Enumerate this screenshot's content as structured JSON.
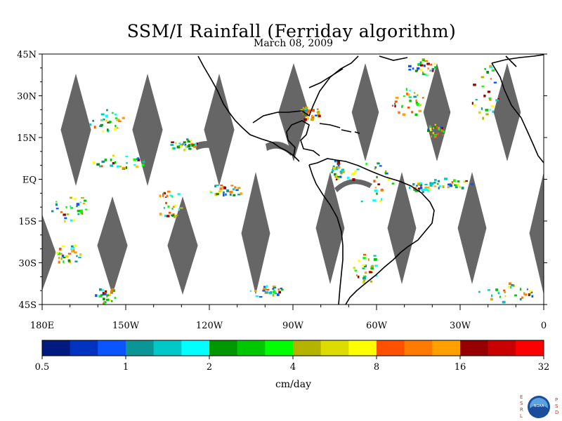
{
  "title": "SSM/I Rainfall (Ferriday algorithm)",
  "date": "March 08, 2009",
  "map": {
    "lat_labels": [
      "45N",
      "30N",
      "15N",
      "EQ",
      "15S",
      "30S",
      "45S"
    ],
    "lat_values": [
      45,
      30,
      15,
      0,
      -15,
      -30,
      -45
    ],
    "lon_labels": [
      "180E",
      "150W",
      "120W",
      "90W",
      "60W",
      "30W",
      "0"
    ],
    "lon_values": [
      -180,
      -150,
      -120,
      -90,
      -60,
      -30,
      0
    ],
    "extent": {
      "lon": [
        -180,
        0
      ],
      "lat": [
        -45,
        45
      ]
    },
    "colors": {
      "no_data": "#666666",
      "land_border": "#000000",
      "background": "#ffffff"
    }
  },
  "colorbar": {
    "unit_label": "cm/day",
    "tick_labels": [
      "0.5",
      "1",
      "2",
      "4",
      "8",
      "16",
      "32"
    ],
    "colors": [
      "#001a80",
      "#0033c0",
      "#0a55ff",
      "#0a9696",
      "#00c8c8",
      "#00ffff",
      "#009600",
      "#00c800",
      "#00ff00",
      "#b4b400",
      "#dcdc00",
      "#ffff00",
      "#ff5000",
      "#ff7a00",
      "#ffa000",
      "#960000",
      "#c80000",
      "#ff0000"
    ]
  },
  "logo": {
    "left_text": "ESRL",
    "right_text": "PSD",
    "center_text": "NOAA"
  }
}
